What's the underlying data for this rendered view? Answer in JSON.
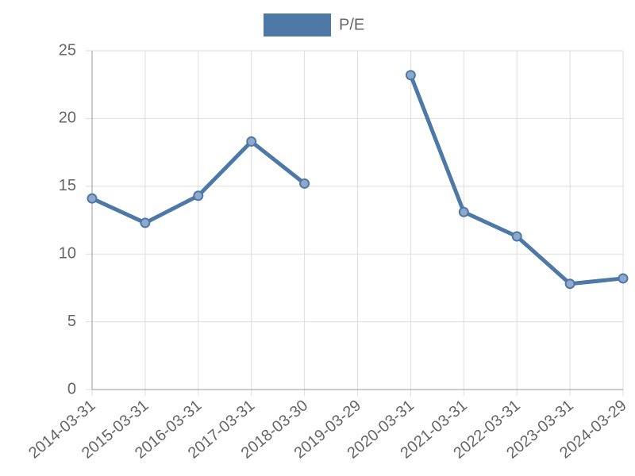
{
  "chart_data": {
    "type": "line",
    "categories": [
      "2014-03-31",
      "2015-03-31",
      "2016-03-31",
      "2017-03-31",
      "2018-03-30",
      "2019-03-29",
      "2020-03-31",
      "2021-03-31",
      "2022-03-31",
      "2023-03-31",
      "2024-03-29"
    ],
    "series": [
      {
        "name": "P/E",
        "color": "#4e79a7",
        "values": [
          14.1,
          12.3,
          14.3,
          18.3,
          15.2,
          null,
          23.2,
          13.1,
          11.3,
          7.8,
          8.2
        ]
      }
    ],
    "ylim": [
      0,
      25
    ],
    "yticks": [
      0,
      5,
      10,
      15,
      20,
      25
    ],
    "grid": true,
    "legend": "top"
  }
}
